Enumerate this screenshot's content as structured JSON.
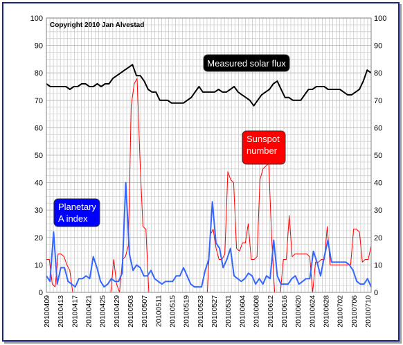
{
  "chart_data": {
    "type": "line",
    "copyright": "Copyright 2010 Jan Alvestad",
    "ylim": [
      0,
      100
    ],
    "yticks": [
      0,
      10,
      20,
      30,
      40,
      50,
      60,
      70,
      80,
      90,
      100
    ],
    "x_start": "2010-04-09",
    "x_end": "2010-07-11",
    "xtick_labels": [
      "20100409",
      "20100413",
      "20100417",
      "20100421",
      "20100425",
      "20100429",
      "20100503",
      "20100507",
      "20100511",
      "20100515",
      "20100519",
      "20100523",
      "20100527",
      "20100531",
      "20100604",
      "20100608",
      "20100612",
      "20100616",
      "20100620",
      "20100624",
      "20100628",
      "20100702",
      "20100706",
      "20100710"
    ],
    "grid": true,
    "series": [
      {
        "name": "Measured solar flux",
        "color": "#000000",
        "values": [
          76,
          75,
          75,
          75,
          75,
          75,
          74,
          75,
          75,
          76,
          76,
          75,
          75,
          76,
          75,
          76,
          76,
          78,
          79,
          80,
          81,
          82,
          83,
          79,
          79,
          77,
          74,
          73,
          73,
          70,
          70,
          70,
          69,
          69,
          69,
          69,
          70,
          71,
          73,
          75,
          73,
          73,
          73,
          73,
          74,
          73,
          73,
          74,
          75,
          73,
          72,
          71,
          70,
          68,
          70,
          72,
          73,
          74,
          76,
          77,
          74,
          71,
          71,
          70,
          70,
          70,
          72,
          74,
          74,
          75,
          75,
          75,
          74,
          74,
          74,
          74,
          73,
          72,
          72,
          73,
          74,
          77,
          81,
          80
        ],
        "x_start_index": 0
      },
      {
        "name": "Sunspot number",
        "color": "#ff0000",
        "values": [
          12,
          12,
          3,
          2,
          14,
          14,
          13,
          10,
          8,
          0,
          0,
          0,
          0,
          0,
          0,
          0,
          0,
          0,
          0,
          0,
          0,
          0,
          0,
          12,
          3,
          0,
          12,
          13,
          17,
          68,
          76,
          78,
          48,
          24,
          23,
          0,
          0,
          0,
          0,
          0,
          0,
          0,
          0,
          0,
          0,
          0,
          0,
          0,
          0,
          0,
          0,
          0,
          0,
          0,
          0,
          0,
          21,
          23,
          16,
          12,
          12,
          14,
          44,
          41,
          40,
          16,
          15,
          18,
          18,
          25,
          12,
          12,
          13,
          41,
          45,
          46,
          47,
          20,
          0,
          0,
          0,
          12,
          12,
          28,
          13,
          14,
          14,
          14,
          14,
          14,
          13,
          0,
          11,
          11,
          12,
          12,
          24,
          10,
          10,
          10,
          10,
          10,
          10,
          10,
          10,
          23,
          23,
          22,
          11,
          12,
          12,
          17
        ],
        "x_start_index": 0
      },
      {
        "name": "Planetary A index",
        "color": "#3366ff",
        "values": [
          6,
          4,
          22,
          3,
          9,
          9,
          4,
          3,
          2,
          5,
          5,
          6,
          5,
          13,
          9,
          4,
          2,
          3,
          5,
          4,
          4,
          7,
          40,
          14,
          8,
          10,
          9,
          6,
          6,
          8,
          5,
          4,
          3,
          4,
          4,
          4,
          6,
          6,
          9,
          6,
          3,
          2,
          2,
          2,
          8,
          12,
          33,
          18,
          16,
          9,
          12,
          16,
          6,
          5,
          4,
          5,
          7,
          6,
          3,
          5,
          3,
          6,
          5,
          19,
          6,
          3,
          3,
          3,
          5,
          6,
          3,
          4,
          5,
          5,
          15,
          11,
          6,
          13,
          19,
          11,
          11,
          11,
          11,
          11,
          10,
          8,
          4,
          3,
          3,
          5,
          2
        ],
        "x_start_index": 0
      }
    ],
    "annotations": [
      {
        "text": "Measured solar flux",
        "color": "#000000"
      },
      {
        "text": "Sunspot number",
        "color": "#ff0000"
      },
      {
        "text": "Planetary A index",
        "color": "#0000ff"
      }
    ]
  }
}
